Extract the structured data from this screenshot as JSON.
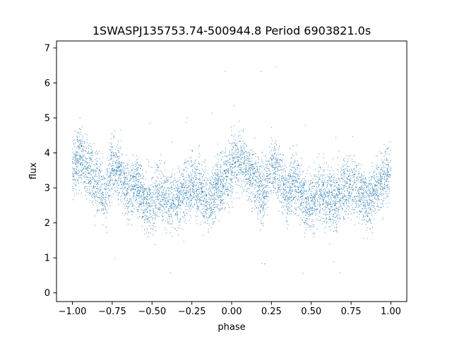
{
  "chart_data": {
    "type": "scatter",
    "title": "1SWASPJ135753.74-500944.8 Period 6903821.0s",
    "xlabel": "phase",
    "ylabel": "flux",
    "xlim": [
      -1.1,
      1.1
    ],
    "ylim": [
      -0.25,
      7.2
    ],
    "xticks": [
      -1.0,
      -0.75,
      -0.5,
      -0.25,
      0.0,
      0.25,
      0.5,
      0.75,
      1.0
    ],
    "xtick_labels": [
      "−1.00",
      "−0.75",
      "−0.50",
      "−0.25",
      "0.00",
      "0.25",
      "0.50",
      "0.75",
      "1.00"
    ],
    "yticks": [
      0,
      1,
      2,
      3,
      4,
      5,
      6,
      7
    ],
    "ytick_labels": [
      "0",
      "1",
      "2",
      "3",
      "4",
      "5",
      "6",
      "7"
    ],
    "grid": false,
    "legend": "none",
    "marker_color": "#1f77b4",
    "marker_size": 1,
    "series": [
      {
        "x_range": [
          -1.0,
          1.0
        ],
        "values_approx": "dense folded light curve; flux mostly 1.5-5.0, peaks near 3.8-4.2 at phase -0.95 and 0.05, troughs near 2.2-2.8 around phase -0.5 and 0.5, sparse outliers between 0 and 6.5",
        "profile": [
          {
            "x": -1.0,
            "y": 3.6
          },
          {
            "x": -0.95,
            "y": 3.9
          },
          {
            "x": -0.9,
            "y": 3.5
          },
          {
            "x": -0.85,
            "y": 3.2
          },
          {
            "x": -0.8,
            "y": 2.8
          },
          {
            "x": -0.75,
            "y": 3.6
          },
          {
            "x": -0.7,
            "y": 3.5
          },
          {
            "x": -0.65,
            "y": 2.8
          },
          {
            "x": -0.6,
            "y": 3.2
          },
          {
            "x": -0.55,
            "y": 2.7
          },
          {
            "x": -0.5,
            "y": 2.5
          },
          {
            "x": -0.45,
            "y": 2.9
          },
          {
            "x": -0.4,
            "y": 2.7
          },
          {
            "x": -0.35,
            "y": 2.6
          },
          {
            "x": -0.3,
            "y": 3.0
          },
          {
            "x": -0.25,
            "y": 3.1
          },
          {
            "x": -0.2,
            "y": 3.0
          },
          {
            "x": -0.15,
            "y": 2.5
          },
          {
            "x": -0.1,
            "y": 3.0
          },
          {
            "x": -0.05,
            "y": 3.2
          },
          {
            "x": 0.0,
            "y": 3.5
          },
          {
            "x": 0.05,
            "y": 3.9
          },
          {
            "x": 0.1,
            "y": 3.5
          },
          {
            "x": 0.15,
            "y": 3.2
          },
          {
            "x": 0.2,
            "y": 2.8
          },
          {
            "x": 0.25,
            "y": 3.6
          },
          {
            "x": 0.3,
            "y": 3.5
          },
          {
            "x": 0.35,
            "y": 2.8
          },
          {
            "x": 0.4,
            "y": 3.2
          },
          {
            "x": 0.45,
            "y": 2.7
          },
          {
            "x": 0.5,
            "y": 2.5
          },
          {
            "x": 0.55,
            "y": 2.9
          },
          {
            "x": 0.6,
            "y": 2.7
          },
          {
            "x": 0.65,
            "y": 2.6
          },
          {
            "x": 0.7,
            "y": 3.0
          },
          {
            "x": 0.75,
            "y": 3.1
          },
          {
            "x": 0.8,
            "y": 3.0
          },
          {
            "x": 0.85,
            "y": 2.5
          },
          {
            "x": 0.9,
            "y": 3.0
          },
          {
            "x": 0.95,
            "y": 3.2
          },
          {
            "x": 1.0,
            "y": 3.5
          }
        ]
      }
    ]
  }
}
